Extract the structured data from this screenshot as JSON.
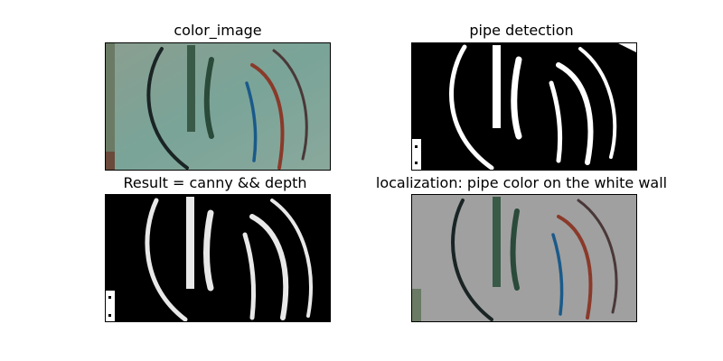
{
  "figure": {
    "panels": [
      {
        "title": "color_image",
        "kind": "color"
      },
      {
        "title": "pipe detection",
        "kind": "mask"
      },
      {
        "title": "Result = canny && depth",
        "kind": "result"
      },
      {
        "title": "localization: pipe  color on  the white wall",
        "kind": "localization"
      }
    ]
  },
  "colors": {
    "black_pipe": "#1a2424",
    "green_pipe": "#3a5a48",
    "blue_pipe": "#1a5a8a",
    "red_pipe": "#8a3a2a",
    "dark_red_pipe": "#4a3838",
    "wall_color": "#7e9a8e",
    "mask_bg": "#000000",
    "mask_fg": "#ffffff",
    "localization_bg": "#a0a0a0"
  }
}
